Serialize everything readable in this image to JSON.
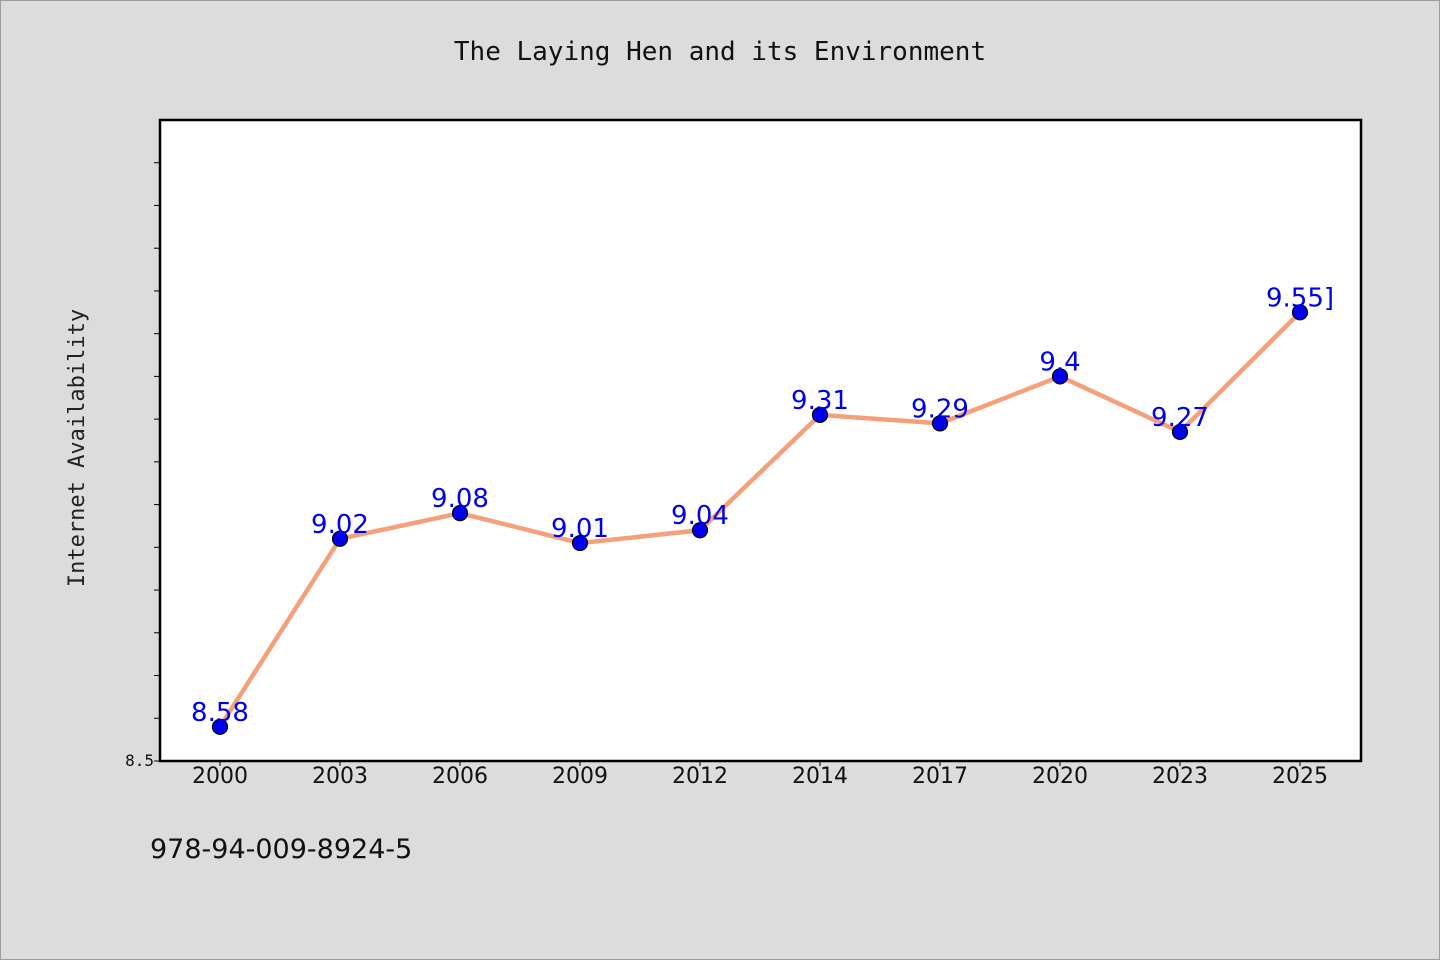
{
  "chart_data": {
    "type": "line",
    "title": "The Laying Hen and its Environment",
    "xlabel": "",
    "ylabel": "Internet Availability",
    "categories": [
      "2000",
      "2003",
      "2006",
      "2009",
      "2012",
      "2014",
      "2017",
      "2020",
      "2023",
      "2025"
    ],
    "series": [
      {
        "values": [
          8.58,
          9.02,
          9.08,
          9.01,
          9.04,
          9.31,
          9.29,
          9.4,
          9.27,
          9.55
        ]
      }
    ],
    "data_labels": [
      "8.58",
      "9.02",
      "9.08",
      "9.01",
      "9.04",
      "9.31",
      "9.29",
      "9.4",
      "9.27",
      "9.55]"
    ],
    "ylim": [
      8.5,
      10.0
    ],
    "yticks_labeled": [
      "8.5"
    ],
    "grid": false,
    "legend": "none",
    "colors": {
      "line": "#f4a07a",
      "marker": "#0000ee",
      "label": "#0000ee",
      "plot_bg": "#ffffff",
      "page_bg": "#dcdcdc"
    }
  },
  "footer": {
    "code": "978-94-009-8924-5"
  }
}
